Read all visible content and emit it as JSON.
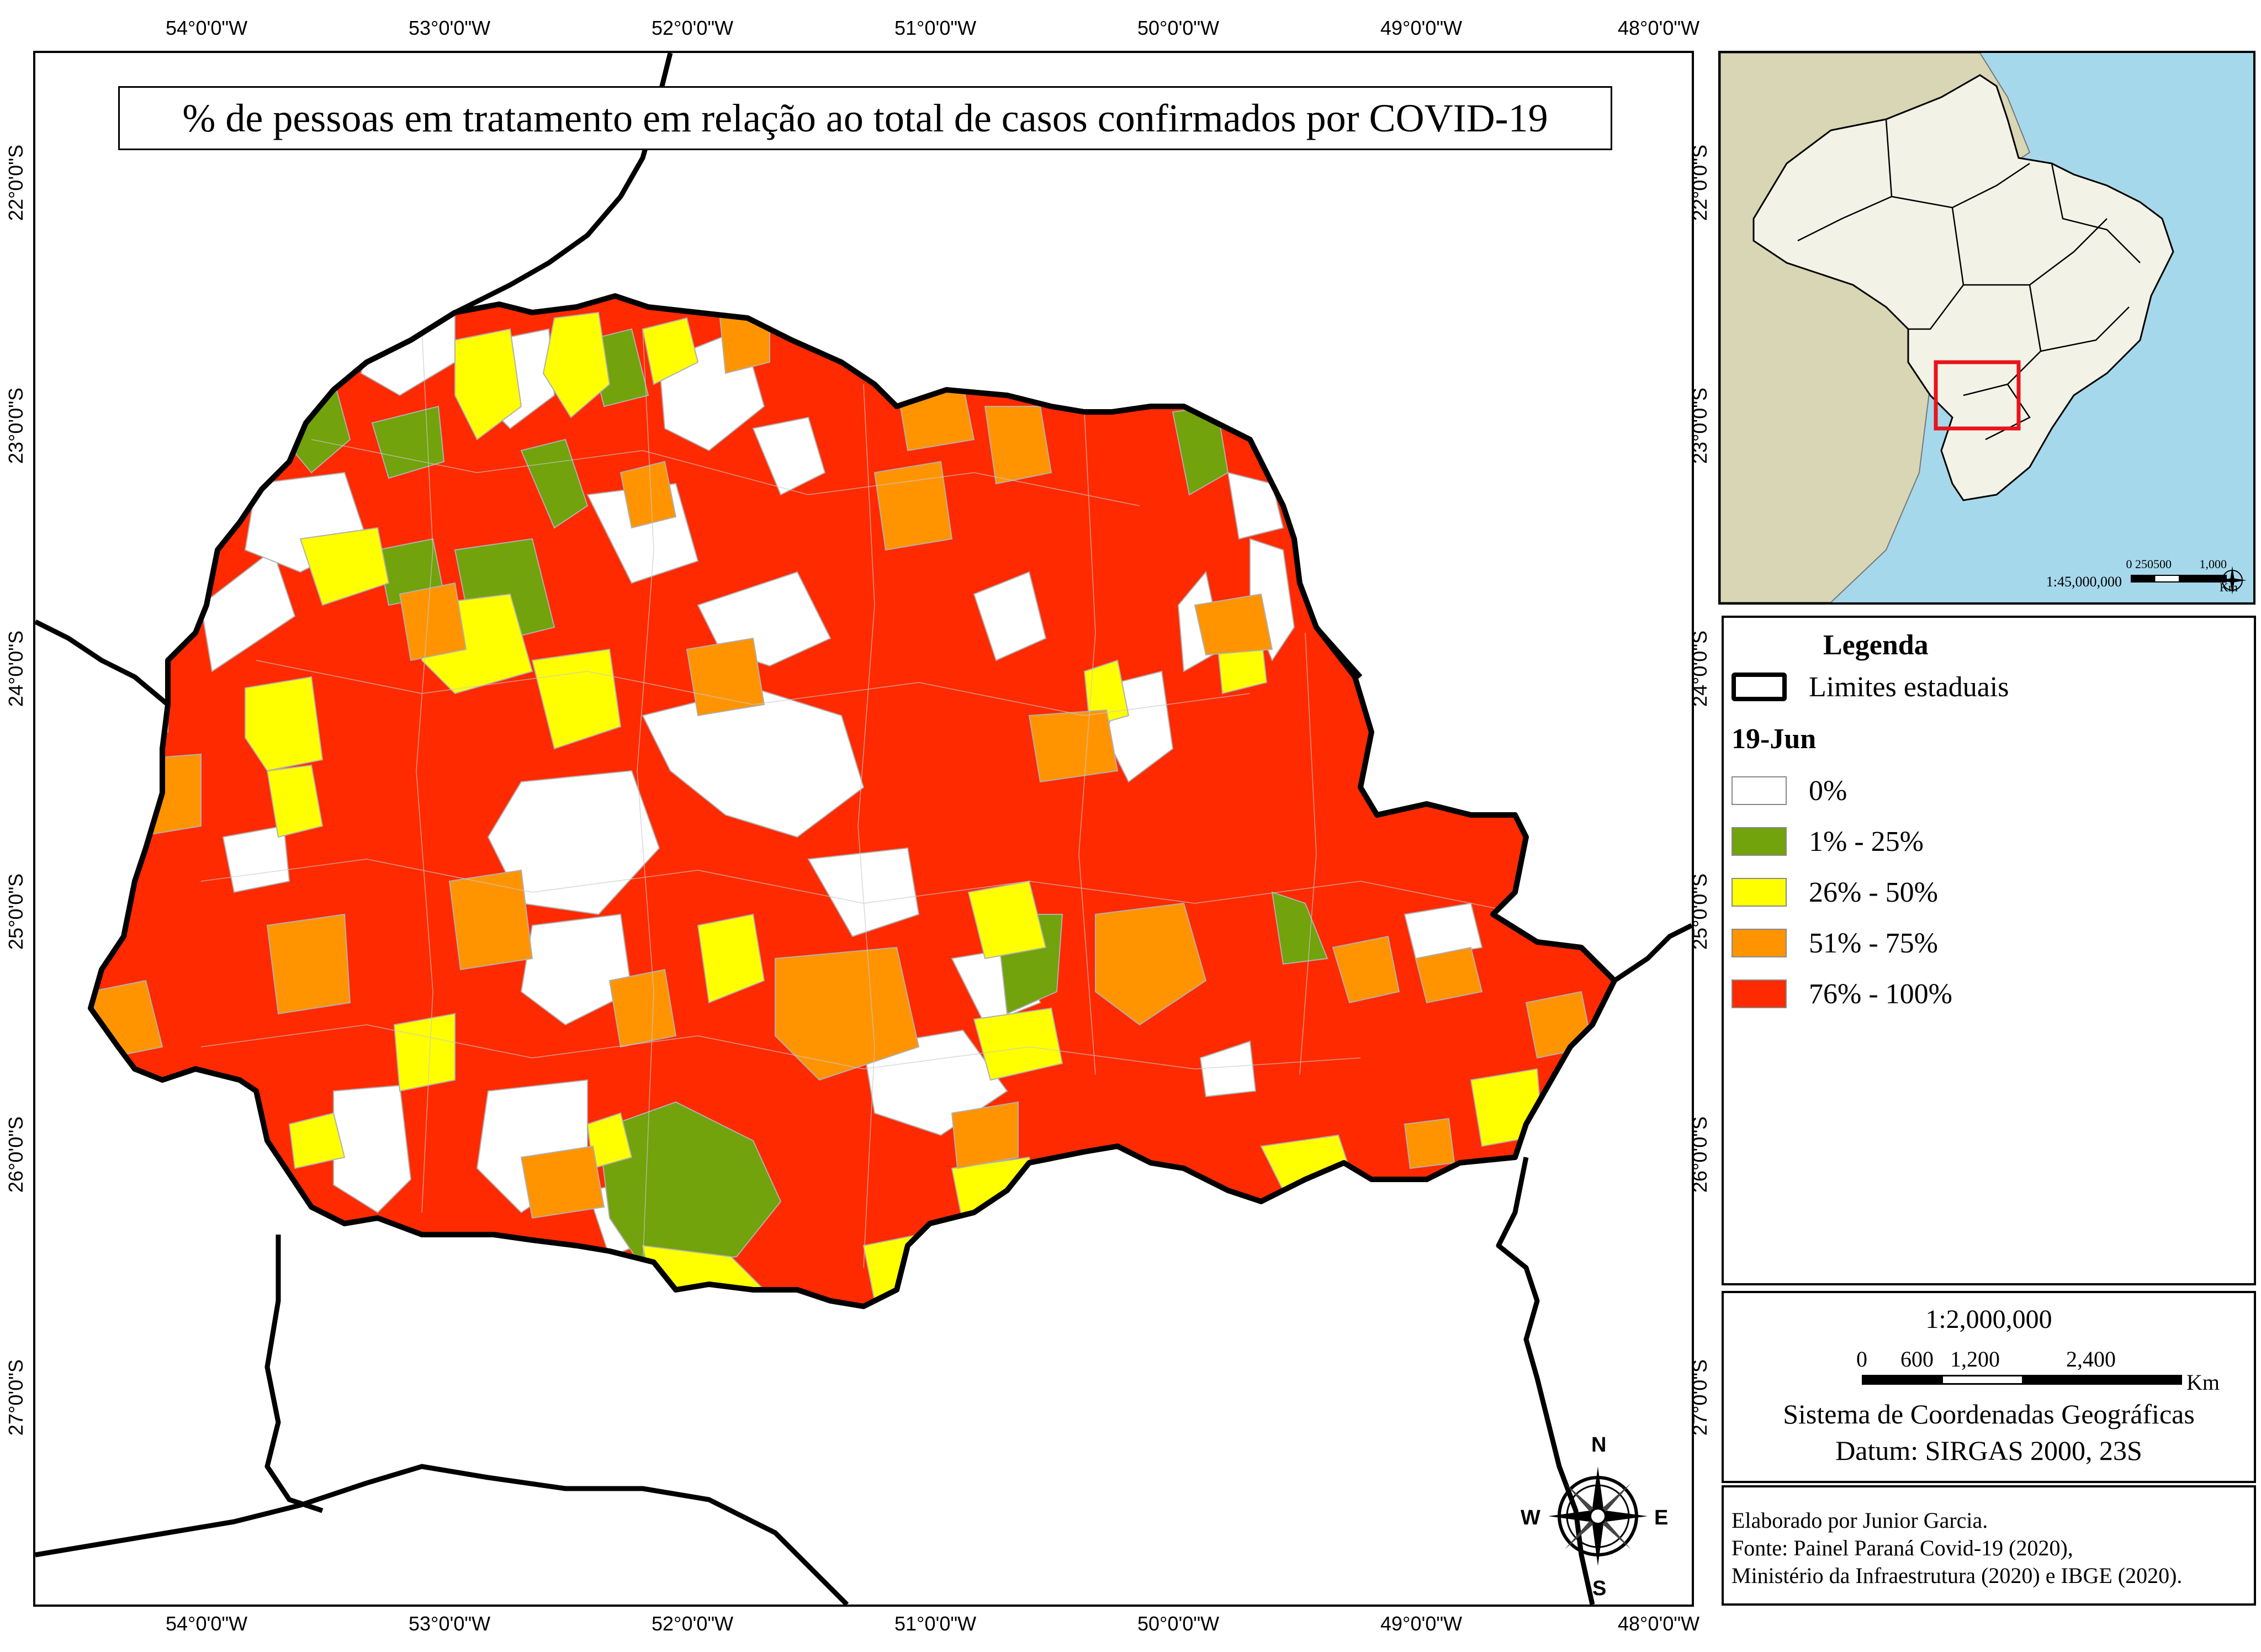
{
  "title": "% de pessoas em tratamento em relação ao total de casos confirmados por COVID-19",
  "graticule": {
    "longitudes": [
      "54°0'0\"W",
      "53°0'0\"W",
      "52°0'0\"W",
      "51°0'0\"W",
      "50°0'0\"W",
      "49°0'0\"W",
      "48°0'0\"W"
    ],
    "latitudes": [
      "22°0'0\"S",
      "23°0'0\"S",
      "24°0'0\"S",
      "25°0'0\"S",
      "26°0'0\"S",
      "27°0'0\"S"
    ]
  },
  "legend": {
    "title": "Legenda",
    "limits_label": "Limites estaduais",
    "date_label": "19-Jun",
    "classes": [
      {
        "label": "0%",
        "color": "#ffffff"
      },
      {
        "label": "1% - 25%",
        "color": "#72a20c"
      },
      {
        "label": "26% - 50%",
        "color": "#ffff00"
      },
      {
        "label": "51% - 75%",
        "color": "#ff9400"
      },
      {
        "label": "76% - 100%",
        "color": "#ff2a00"
      }
    ]
  },
  "inset": {
    "scale_ratio": "1:45,000,000",
    "scale_numbers": [
      "0",
      "250500",
      "1,000"
    ],
    "scale_unit": "Km",
    "ocean_color": "#a6d8ec",
    "land_color": "#d8d6b4",
    "brazil_color": "#f3f2e6",
    "highlight_color": "#e8141b"
  },
  "scale": {
    "ratio": "1:2,000,000",
    "numbers": [
      "0",
      "600",
      "1,200",
      "2,400"
    ],
    "unit": "Km"
  },
  "coordinates": {
    "system": "Sistema de Coordenadas Geográficas",
    "datum": "Datum: SIRGAS 2000, 23S"
  },
  "credits": {
    "author": "Elaborado por Junior Garcia.",
    "source1": "Fonte: Painel Paraná Covid-19 (2020),",
    "source2": "Ministério da Infraestrutura (2020) e IBGE (2020)."
  },
  "compass": {
    "n": "N",
    "s": "S",
    "e": "E",
    "w": "W"
  }
}
